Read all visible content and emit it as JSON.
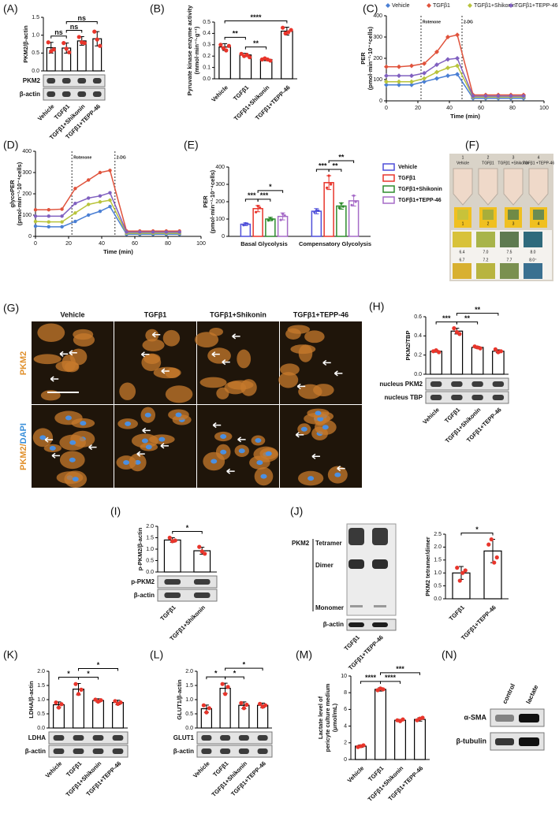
{
  "chart_data": [
    {
      "panel": "(A)",
      "type": "bar",
      "ylabel": [
        "PKM2/β-actin"
      ],
      "categories": [
        "Vehicle",
        "TGFβ1",
        "TGFβ1+Shikonin",
        "TGFβ1+TEPP-46"
      ],
      "values": [
        0.65,
        0.64,
        0.84,
        0.9
      ],
      "errors": [
        0.15,
        0.14,
        0.12,
        0.2
      ],
      "points": [
        [
          0.8,
          0.55,
          0.6
        ],
        [
          0.78,
          0.62,
          0.52
        ],
        [
          0.95,
          0.8,
          0.78
        ],
        [
          1.1,
          0.88,
          0.7
        ]
      ],
      "ylim": [
        0,
        1.5
      ],
      "yticks": [
        {
          "value": 0,
          "label": "0.0"
        },
        0.5,
        {
          "value": 1,
          "label": "1.0"
        },
        1.5
      ],
      "comparisons": [
        {
          "pair": [
            "Vehicle",
            "TGFβ1"
          ],
          "label": "ns"
        },
        {
          "pair": [
            "TGFβ1",
            "TGFβ1+Shikonin"
          ],
          "label": "ns"
        },
        {
          "pair": [
            "TGFβ1",
            "TGFβ1+TEPP-46"
          ],
          "label": "ns"
        }
      ],
      "blots": [
        "PKM2",
        "β-actin"
      ],
      "bar_color": "#ffffff",
      "point_color": "#e8352b"
    },
    {
      "panel": "(B)",
      "type": "bar",
      "ylabel": [
        "Pyruvate kinase enzyme activity",
        "(mmol·min⁻¹·g⁻¹)"
      ],
      "categories": [
        "Vehicle",
        "TGFβ1",
        "TGFβ1+Shikonin",
        "TGFβ1+TEPP-46"
      ],
      "values": [
        0.28,
        0.21,
        0.17,
        0.42
      ],
      "errors": [
        0.03,
        0.015,
        0.01,
        0.035
      ],
      "points": [
        [
          0.3,
          0.27,
          0.25,
          0.29
        ],
        [
          0.22,
          0.2,
          0.21,
          0.19
        ],
        [
          0.17,
          0.18,
          0.17,
          0.16
        ],
        [
          0.45,
          0.4,
          0.41,
          0.43
        ]
      ],
      "ylim": [
        0,
        0.5
      ],
      "yticks": [
        {
          "value": 0,
          "label": "0.0"
        },
        0.1,
        0.2,
        0.3,
        0.4,
        0.5
      ],
      "comparisons": [
        {
          "pair": [
            "Vehicle",
            "TGFβ1"
          ],
          "label": "**"
        },
        {
          "pair": [
            "TGFβ1",
            "TGFβ1+Shikonin"
          ],
          "label": "**"
        },
        {
          "pair": [
            "Vehicle",
            "TGFβ1+TEPP-46"
          ],
          "label": "****"
        }
      ],
      "bar_color": "#ffffff",
      "point_color": "#e8352b"
    },
    {
      "panel": "(C)",
      "type": "line",
      "ylabel": [
        "PER",
        "(pmol·min⁻¹·10⁻⁴cells)"
      ],
      "xlabel": "Time (min)",
      "x": [
        0,
        8,
        16,
        24,
        32,
        39,
        45,
        55,
        63,
        71,
        79,
        87
      ],
      "series": [
        {
          "name": "Vehicle",
          "color": "#4a7fd4",
          "values": [
            75,
            75,
            75,
            90,
            105,
            118,
            125,
            12,
            12,
            12,
            12,
            12
          ]
        },
        {
          "name": "TGFβ1",
          "color": "#e0533c",
          "values": [
            160,
            160,
            165,
            175,
            230,
            300,
            310,
            28,
            28,
            28,
            28,
            28
          ]
        },
        {
          "name": "TGFβ1+Shikonin",
          "color": "#b9c43c",
          "values": [
            90,
            90,
            90,
            105,
            135,
            155,
            165,
            18,
            18,
            18,
            18,
            18
          ]
        },
        {
          "name": "TGFβ1+TEPP-46",
          "color": "#8060c0",
          "values": [
            118,
            118,
            118,
            130,
            170,
            195,
            200,
            22,
            22,
            22,
            22,
            22
          ]
        }
      ],
      "xlim": [
        0,
        100
      ],
      "xticks": [
        0,
        20,
        40,
        60,
        80,
        100
      ],
      "ylim": [
        0,
        400
      ],
      "yticks": [
        0,
        100,
        200,
        300,
        400
      ],
      "annotations": [
        {
          "x": 22,
          "text": "Rotenone"
        },
        {
          "x": 48,
          "text": "2-DG"
        }
      ],
      "legend": true,
      "marker": "diamond"
    },
    {
      "panel": "(D)",
      "type": "line",
      "ylabel": [
        "glycoPER",
        "(pmol·min⁻¹·10⁻⁴cells)"
      ],
      "xlabel": "Time (min)",
      "x": [
        0,
        8,
        16,
        24,
        32,
        39,
        45,
        55,
        63,
        71,
        79,
        87
      ],
      "series": [
        {
          "name": "Vehicle",
          "color": "#4a7fd4",
          "values": [
            48,
            45,
            45,
            70,
            100,
            118,
            140,
            10,
            10,
            10,
            10,
            10
          ]
        },
        {
          "name": "TGFβ1",
          "color": "#e0533c",
          "values": [
            125,
            125,
            128,
            225,
            265,
            300,
            310,
            25,
            25,
            25,
            25,
            25
          ]
        },
        {
          "name": "TGFβ1+Shikonin",
          "color": "#b9c43c",
          "values": [
            70,
            68,
            68,
            110,
            150,
            162,
            170,
            15,
            15,
            15,
            15,
            15
          ]
        },
        {
          "name": "TGFβ1+TEPP-46",
          "color": "#8060c0",
          "values": [
            95,
            95,
            95,
            155,
            180,
            190,
            205,
            20,
            20,
            20,
            20,
            20
          ]
        }
      ],
      "xlim": [
        0,
        100
      ],
      "xticks": [
        0,
        20,
        40,
        60,
        80,
        100
      ],
      "ylim": [
        0,
        400
      ],
      "yticks": [
        0,
        100,
        200,
        300,
        400
      ],
      "annotations": [
        {
          "x": 22,
          "text": "Rotenone"
        },
        {
          "x": 48,
          "text": "2-DG"
        }
      ],
      "legend": false,
      "marker": "circle"
    },
    {
      "panel": "(E)",
      "type": "bar",
      "ylabel": [
        "PER",
        "(pmol·min⁻¹·10⁻⁴cells)"
      ],
      "categories": [
        "Basal Glycolysis",
        "Compensatory Glycolysis"
      ],
      "series": [
        {
          "name": "Vehicle",
          "color": "#4f4fd9",
          "values": [
            70,
            145
          ],
          "errors": [
            8,
            15
          ],
          "points": [
            [
              65,
              75,
              72
            ],
            [
              140,
              150,
              148
            ]
          ]
        },
        {
          "name": "TGFβ1",
          "color": "#e8352b",
          "values": [
            160,
            310
          ],
          "errors": [
            18,
            40
          ],
          "points": [
            [
              140,
              175,
              165
            ],
            [
              280,
              350,
              300
            ]
          ]
        },
        {
          "name": "TGFβ1+Shikonin",
          "color": "#2e8b2e",
          "values": [
            100,
            175
          ],
          "errors": [
            10,
            18
          ],
          "points": [
            [
              92,
              105,
              98
            ],
            [
              165,
              190,
              172
            ]
          ]
        },
        {
          "name": "TGFβ1+TEPP-46",
          "color": "#a66bc7",
          "values": [
            115,
            205
          ],
          "errors": [
            20,
            30
          ],
          "points": [
            [
              95,
              130,
              120
            ],
            [
              180,
              235,
              200
            ]
          ]
        }
      ],
      "ylim": [
        0,
        400
      ],
      "yticks": [
        0,
        100,
        200,
        300,
        400
      ],
      "comparisons": [
        {
          "category": "Basal Glycolysis",
          "pair": [
            "Vehicle",
            "TGFβ1"
          ],
          "label": "***"
        },
        {
          "category": "Basal Glycolysis",
          "pair": [
            "TGFβ1",
            "TGFβ1+Shikonin"
          ],
          "label": "***"
        },
        {
          "category": "Basal Glycolysis",
          "pair": [
            "TGFβ1",
            "TGFβ1+TEPP-46"
          ],
          "label": "*"
        },
        {
          "category": "Compensatory Glycolysis",
          "pair": [
            "Vehicle",
            "TGFβ1"
          ],
          "label": "***"
        },
        {
          "category": "Compensatory Glycolysis",
          "pair": [
            "TGFβ1",
            "TGFβ1+Shikonin"
          ],
          "label": "**"
        },
        {
          "category": "Compensatory Glycolysis",
          "pair": [
            "TGFβ1",
            "TGFβ1+TEPP-46"
          ],
          "label": "**"
        }
      ],
      "legend": "right",
      "bar_color": "#ffffff"
    },
    {
      "panel": "(H)",
      "type": "bar",
      "ylabel": [
        "PKM2/TBP"
      ],
      "categories": [
        "Vehicle",
        "TGFβ1",
        "TGFβ1+Shikonin",
        "TGFβ1+TEPP-46"
      ],
      "values": [
        0.24,
        0.45,
        0.28,
        0.24
      ],
      "errors": [
        0.01,
        0.03,
        0.01,
        0.015
      ],
      "points": [
        [
          0.24,
          0.25,
          0.23
        ],
        [
          0.48,
          0.44,
          0.42
        ],
        [
          0.29,
          0.28,
          0.27
        ],
        [
          0.26,
          0.23,
          0.24
        ]
      ],
      "ylim": [
        0,
        0.6
      ],
      "yticks": [
        {
          "value": 0,
          "label": "0.0"
        },
        0.2,
        0.4,
        0.6
      ],
      "comparisons": [
        {
          "pair": [
            "Vehicle",
            "TGFβ1"
          ],
          "label": "***"
        },
        {
          "pair": [
            "TGFβ1",
            "TGFβ1+Shikonin"
          ],
          "label": "**"
        },
        {
          "pair": [
            "TGFβ1",
            "TGFβ1+TEPP-46"
          ],
          "label": "**"
        }
      ],
      "blots": [
        "nucleus PKM2",
        "nucleus TBP"
      ],
      "bar_color": "#ffffff",
      "point_color": "#e8352b"
    },
    {
      "panel": "(I)",
      "type": "bar",
      "ylabel": [
        "p-PKM2/β-actin"
      ],
      "categories": [
        "TGFβ1",
        "TGFβ1+Shikonin"
      ],
      "values": [
        1.4,
        0.93
      ],
      "errors": [
        0.1,
        0.15
      ],
      "points": [
        [
          1.5,
          1.35,
          1.38
        ],
        [
          1.1,
          0.9,
          0.8
        ]
      ],
      "ylim": [
        0,
        2
      ],
      "yticks": [
        {
          "value": 0,
          "label": "0.0"
        },
        0.5,
        {
          "value": 1,
          "label": "1.0"
        },
        1.5,
        {
          "value": 2,
          "label": "2.0"
        }
      ],
      "comparisons": [
        {
          "pair": [
            "TGFβ1",
            "TGFβ1+Shikonin"
          ],
          "label": "*"
        }
      ],
      "blots": [
        "p-PKM2",
        "β-actin"
      ],
      "bar_color": "#ffffff",
      "point_color": "#e8352b"
    },
    {
      "panel": "(J)",
      "type": "bar",
      "ylabel": [
        "PKM2 tetramer/dimer"
      ],
      "categories": [
        "TGFβ1",
        "TGFβ1+TEPP-46"
      ],
      "values": [
        1.0,
        1.85
      ],
      "errors": [
        0.25,
        0.45
      ],
      "points": [
        [
          1.2,
          0.7,
          1.0,
          1.1
        ],
        [
          2.1,
          2.3,
          1.4,
          1.6
        ]
      ],
      "ylim": [
        0,
        2.5
      ],
      "yticks": [
        {
          "value": 0,
          "label": "0.0"
        },
        0.5,
        {
          "value": 1,
          "label": "1.0"
        },
        1.5,
        {
          "value": 2,
          "label": "2.0"
        },
        2.5
      ],
      "comparisons": [
        {
          "pair": [
            "TGFβ1",
            "TGFβ1+TEPP-46"
          ],
          "label": "*"
        }
      ],
      "bar_color": "#ffffff",
      "point_color": "#e8352b"
    },
    {
      "panel": "(K)",
      "type": "bar",
      "ylabel": [
        "LDHA/β-actin"
      ],
      "categories": [
        "Vehicle",
        "TGFβ1",
        "TGFβ1+Shikonin",
        "TGFβ1+TEPP-46"
      ],
      "values": [
        0.82,
        1.37,
        0.97,
        0.9
      ],
      "errors": [
        0.1,
        0.2,
        0.06,
        0.08
      ],
      "points": [
        [
          0.9,
          0.72,
          0.84
        ],
        [
          1.55,
          1.2,
          1.35
        ],
        [
          1.0,
          0.93,
          0.98
        ],
        [
          0.95,
          0.85,
          0.9
        ]
      ],
      "ylim": [
        0,
        2
      ],
      "yticks": [
        {
          "value": 0,
          "label": "0.0"
        },
        0.5,
        {
          "value": 1,
          "label": "1.0"
        },
        1.5,
        {
          "value": 2,
          "label": "2.0"
        }
      ],
      "comparisons": [
        {
          "pair": [
            "Vehicle",
            "TGFβ1"
          ],
          "label": "*"
        },
        {
          "pair": [
            "TGFβ1",
            "TGFβ1+Shikonin"
          ],
          "label": "*"
        },
        {
          "pair": [
            "TGFβ1",
            "TGFβ1+TEPP-46"
          ],
          "label": "*"
        }
      ],
      "blots": [
        "LDHA",
        "β-actin"
      ],
      "bar_color": "#ffffff",
      "point_color": "#e8352b"
    },
    {
      "panel": "(L)",
      "type": "bar",
      "ylabel": [
        "GLUT1/β-actin"
      ],
      "categories": [
        "Vehicle",
        "TGFβ1",
        "TGFβ1+Shikonin",
        "TGFβ1+TEPP-46"
      ],
      "values": [
        0.68,
        1.4,
        0.8,
        0.8
      ],
      "errors": [
        0.13,
        0.18,
        0.12,
        0.08
      ],
      "points": [
        [
          0.8,
          0.55,
          0.7
        ],
        [
          1.55,
          1.2,
          1.45
        ],
        [
          0.88,
          0.7,
          0.82
        ],
        [
          0.85,
          0.75,
          0.8
        ]
      ],
      "ylim": [
        0,
        2
      ],
      "yticks": [
        {
          "value": 0,
          "label": "0.0"
        },
        0.5,
        {
          "value": 1,
          "label": "1.0"
        },
        1.5,
        {
          "value": 2,
          "label": "2.0"
        }
      ],
      "comparisons": [
        {
          "pair": [
            "Vehicle",
            "TGFβ1"
          ],
          "label": "*"
        },
        {
          "pair": [
            "TGFβ1",
            "TGFβ1+Shikonin"
          ],
          "label": "*"
        },
        {
          "pair": [
            "TGFβ1",
            "TGFβ1+TEPP-46"
          ],
          "label": "*"
        }
      ],
      "blots": [
        "GLUT1",
        "β-actin"
      ],
      "bar_color": "#ffffff",
      "point_color": "#e8352b"
    },
    {
      "panel": "(M)",
      "type": "bar",
      "ylabel": [
        "Lactate level of",
        "pericyte culture medium",
        "(μmol/mL)"
      ],
      "categories": [
        "Vehicle",
        "TGFβ1",
        "TGFβ1+Shikonin",
        "TGFβ1+TEPP-46"
      ],
      "values": [
        1.6,
        8.4,
        4.7,
        4.8
      ],
      "errors": [
        0.15,
        0.2,
        0.1,
        0.2
      ],
      "points": [
        [
          1.5,
          1.6,
          1.7
        ],
        [
          8.3,
          8.5,
          8.4
        ],
        [
          4.7,
          4.6,
          4.8
        ],
        [
          4.7,
          4.9,
          5.0
        ]
      ],
      "ylim": [
        0,
        10
      ],
      "yticks": [
        0,
        2,
        4,
        6,
        8,
        10
      ],
      "comparisons": [
        {
          "pair": [
            "Vehicle",
            "TGFβ1"
          ],
          "label": "****"
        },
        {
          "pair": [
            "TGFβ1",
            "TGFβ1+Shikonin"
          ],
          "label": "****"
        },
        {
          "pair": [
            "TGFβ1",
            "TGFβ1+TEPP-46"
          ],
          "label": "***"
        }
      ],
      "bar_color": "#ffffff",
      "point_color": "#e8352b"
    }
  ],
  "figures": {
    "F": {
      "panel": "(F)",
      "tubes": [
        {
          "number": "1",
          "name": "Vehicle"
        },
        {
          "number": "2",
          "name": "TGFβ1"
        },
        {
          "number": "3",
          "name": "TGFβ1 +Shikonin"
        },
        {
          "number": "4",
          "name": "TGFβ1 +TEPP-46"
        }
      ],
      "strip_numbers": [
        "1",
        "2",
        "3",
        "4"
      ],
      "scale": [
        [
          "6.4",
          "7.0",
          "7.5",
          "8.0"
        ],
        [
          "6.7",
          "7.2",
          "7.7",
          "8.0⁺"
        ]
      ]
    },
    "G": {
      "panel": "(G)",
      "columns": [
        "Vehicle",
        "TGFβ1",
        "TGFβ1+Shikonin",
        "TGFβ1+TEPP-46"
      ],
      "rows": [
        [
          "PKM2"
        ],
        [
          "PKM2/",
          "DAPI"
        ]
      ]
    },
    "J": {
      "labels": [
        "PKM2",
        "Tetramer",
        "Dimer",
        "Monomer"
      ],
      "loading": "β-actin",
      "categories": [
        "TGFβ1",
        "TGFβ1+TEPP-46"
      ]
    },
    "N": {
      "panel": "(N)",
      "columns": [
        "control",
        "lactate"
      ],
      "rows": [
        "α-SMA",
        "β-tubulin"
      ]
    }
  }
}
